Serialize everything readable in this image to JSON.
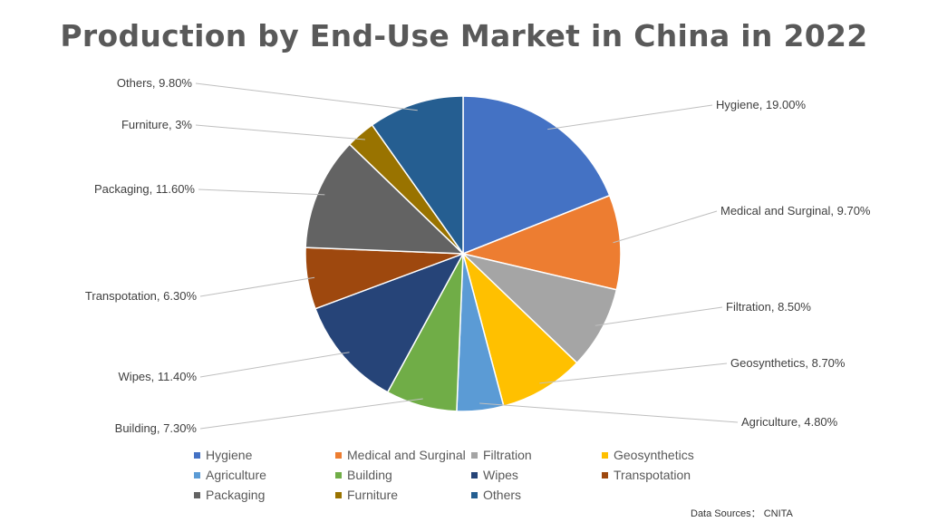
{
  "chart_data": {
    "type": "pie",
    "title": "Production by End-Use Market in China in 2022",
    "slices": [
      {
        "label": "Hygiene",
        "value": 19.0,
        "data_label": "Hygiene, 19.00%",
        "color": "#4472C4"
      },
      {
        "label": "Medical and Surginal",
        "value": 9.7,
        "data_label": "Medical and Surginal, 9.70%",
        "color": "#ED7D31"
      },
      {
        "label": "Filtration",
        "value": 8.5,
        "data_label": "Filtration, 8.50%",
        "color": "#A5A5A5"
      },
      {
        "label": "Geosynthetics",
        "value": 8.7,
        "data_label": "Geosynthetics, 8.70%",
        "color": "#FFC000"
      },
      {
        "label": "Agriculture",
        "value": 4.8,
        "data_label": "Agriculture, 4.80%",
        "color": "#5B9BD5"
      },
      {
        "label": "Building",
        "value": 7.3,
        "data_label": "Building, 7.30%",
        "color": "#70AD47"
      },
      {
        "label": "Wipes",
        "value": 11.4,
        "data_label": "Wipes, 11.40%",
        "color": "#264478"
      },
      {
        "label": "Transpotation",
        "value": 6.3,
        "data_label": "Transpotation, 6.30%",
        "color": "#9E480E"
      },
      {
        "label": "Packaging",
        "value": 11.6,
        "data_label": "Packaging, 11.60%",
        "color": "#636363"
      },
      {
        "label": "Furniture",
        "value": 3.0,
        "data_label": "Furniture, 3%",
        "color": "#997300"
      },
      {
        "label": "Others",
        "value": 9.8,
        "data_label": "Others, 9.80%",
        "color": "#255E91"
      }
    ],
    "legend_placement": "bottom"
  },
  "source": "Data Sources： CNITA"
}
